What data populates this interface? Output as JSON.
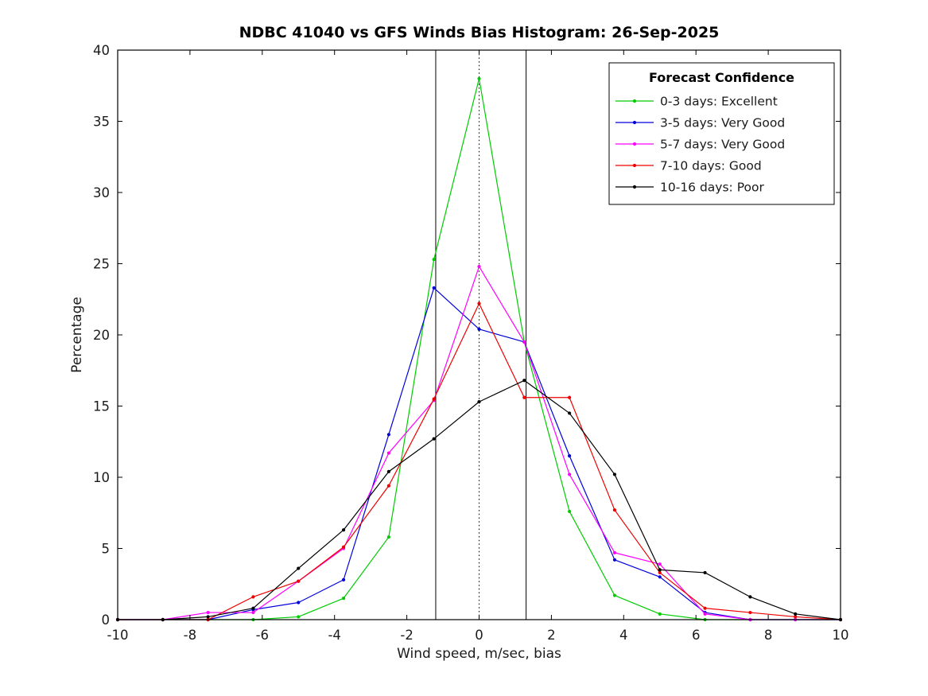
{
  "chart_data": {
    "type": "line",
    "title": "NDBC 41040 vs GFS Winds Bias Histogram: 26-Sep-2025",
    "xlabel": "Wind speed, m/sec, bias",
    "ylabel": "Percentage",
    "xlim": [
      -10,
      10
    ],
    "ylim": [
      0,
      40
    ],
    "xticks": [
      -10,
      -8,
      -6,
      -4,
      -2,
      0,
      2,
      4,
      6,
      8,
      10
    ],
    "yticks": [
      0,
      5,
      10,
      15,
      20,
      25,
      30,
      35,
      40
    ],
    "grid": false,
    "x": [
      -10,
      -8.75,
      -7.5,
      -6.25,
      -5,
      -3.75,
      -2.5,
      -1.25,
      0,
      1.25,
      2.5,
      3.75,
      5,
      6.25,
      7.5,
      8.75,
      10
    ],
    "series": [
      {
        "name": "0-3 days: Excellent",
        "color": "#00cc00",
        "values": [
          0,
          0,
          0,
          0,
          0.2,
          1.5,
          5.8,
          25.3,
          38.0,
          19.5,
          7.6,
          1.7,
          0.4,
          0,
          0,
          0,
          0
        ]
      },
      {
        "name": "3-5 days: Very Good",
        "color": "#0000dd",
        "values": [
          0,
          0,
          0,
          0.7,
          1.2,
          2.8,
          13.0,
          23.3,
          20.4,
          19.5,
          11.5,
          4.2,
          3.0,
          0.5,
          0,
          0,
          0
        ]
      },
      {
        "name": "5-7 days: Very Good",
        "color": "#ff00ff",
        "values": [
          0,
          0,
          0.5,
          0.5,
          2.7,
          5.0,
          11.7,
          15.4,
          24.8,
          19.5,
          10.2,
          4.7,
          3.9,
          0.4,
          0,
          0,
          0
        ]
      },
      {
        "name": "7-10 days: Good",
        "color": "#ee0000",
        "values": [
          0,
          0,
          0,
          1.6,
          2.7,
          5.1,
          9.4,
          15.5,
          22.2,
          15.6,
          15.6,
          7.7,
          3.3,
          0.8,
          0.5,
          0.2,
          0
        ]
      },
      {
        "name": "10-16 days: Poor",
        "color": "#000000",
        "values": [
          0,
          0,
          0.2,
          0.8,
          3.6,
          6.3,
          10.4,
          12.7,
          15.3,
          16.8,
          14.5,
          10.2,
          3.5,
          3.3,
          1.6,
          0.4,
          0
        ]
      }
    ],
    "vlines": [
      {
        "x": -1.2,
        "style": "solid"
      },
      {
        "x": 0,
        "style": "dotted"
      },
      {
        "x": 1.3,
        "style": "solid"
      }
    ],
    "legend": {
      "title": "Forecast Confidence",
      "position": "top-right"
    }
  }
}
